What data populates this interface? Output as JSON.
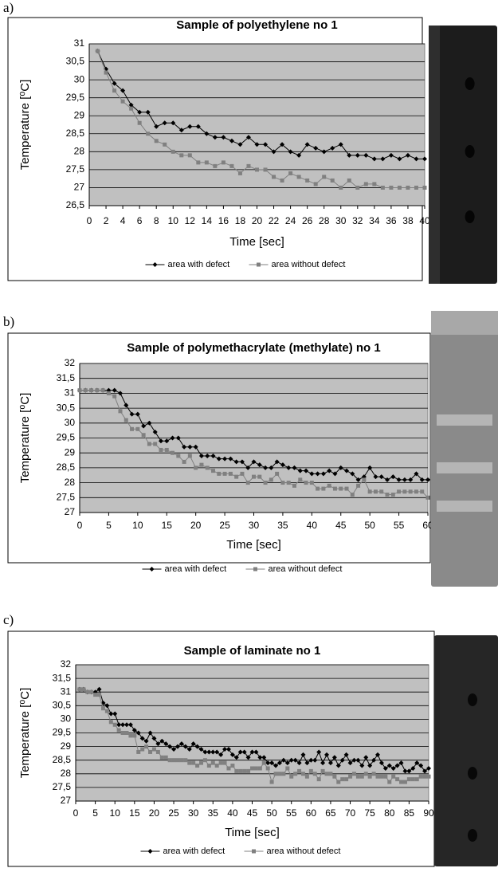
{
  "chart_data": [
    {
      "type": "line",
      "panel": "a)",
      "title": "Sample of polyethylene no 1",
      "x_label": "Time [sec]",
      "y_label": "Temperature [⁰C]",
      "x": [
        1,
        2,
        3,
        4,
        5,
        6,
        7,
        8,
        9,
        10,
        11,
        12,
        13,
        14,
        15,
        16,
        17,
        18,
        19,
        20,
        21,
        22,
        23,
        24,
        25,
        26,
        27,
        28,
        29,
        30,
        31,
        32,
        33,
        34,
        35,
        36,
        37,
        38,
        39,
        40
      ],
      "series": [
        {
          "name": "area with defect",
          "color": "#000000",
          "marker": "diamond",
          "values": [
            30.8,
            30.3,
            29.9,
            29.7,
            29.3,
            29.1,
            29.1,
            28.7,
            28.8,
            28.8,
            28.6,
            28.7,
            28.7,
            28.5,
            28.4,
            28.4,
            28.3,
            28.2,
            28.4,
            28.2,
            28.2,
            28.0,
            28.2,
            28.0,
            27.9,
            28.2,
            28.1,
            28.0,
            28.1,
            28.2,
            27.9,
            27.9,
            27.9,
            27.8,
            27.8,
            27.9,
            27.8,
            27.9,
            27.8,
            27.8
          ]
        },
        {
          "name": "area without defect",
          "color": "#808080",
          "marker": "square",
          "values": [
            30.8,
            30.2,
            29.7,
            29.4,
            29.2,
            28.8,
            28.5,
            28.3,
            28.2,
            28.0,
            27.9,
            27.9,
            27.7,
            27.7,
            27.6,
            27.7,
            27.6,
            27.4,
            27.6,
            27.5,
            27.5,
            27.3,
            27.2,
            27.4,
            27.3,
            27.2,
            27.1,
            27.3,
            27.2,
            27.0,
            27.2,
            27.0,
            27.1,
            27.1,
            27.0,
            27.0,
            27.0,
            27.0,
            27.0,
            27.0
          ]
        }
      ],
      "xlim": [
        0,
        40
      ],
      "xticks": [
        0,
        2,
        4,
        6,
        8,
        10,
        12,
        14,
        16,
        18,
        20,
        22,
        24,
        26,
        28,
        30,
        32,
        34,
        36,
        38,
        40
      ],
      "ylim": [
        26.5,
        31
      ],
      "yticks": [
        {
          "value": 26.5,
          "label": "26,5"
        },
        27,
        {
          "value": 27.5,
          "label": "27,5"
        },
        28,
        {
          "value": 28.5,
          "label": "28,5"
        },
        29,
        {
          "value": 29.5,
          "label": "29,5"
        },
        30,
        {
          "value": 30.5,
          "label": "30,5"
        },
        31
      ],
      "grid": true,
      "plot_background": "#c0c0c0",
      "legend": "bottom"
    },
    {
      "type": "line",
      "panel": "b)",
      "title": "Sample of polymethacrylate (methylate) no 1",
      "x_label": "Time [sec]",
      "y_label": "Temperature [⁰C]",
      "x": [
        0,
        1,
        2,
        3,
        4,
        5,
        6,
        7,
        8,
        9,
        10,
        11,
        12,
        13,
        14,
        15,
        16,
        17,
        18,
        19,
        20,
        21,
        22,
        23,
        24,
        25,
        26,
        27,
        28,
        29,
        30,
        31,
        32,
        33,
        34,
        35,
        36,
        37,
        38,
        39,
        40,
        41,
        42,
        43,
        44,
        45,
        46,
        47,
        48,
        49,
        50,
        51,
        52,
        53,
        54,
        55,
        56,
        57,
        58,
        59,
        60
      ],
      "series": [
        {
          "name": "area with defect",
          "color": "#000000",
          "marker": "diamond",
          "values": [
            31.1,
            31.1,
            31.1,
            31.1,
            31.1,
            31.1,
            31.1,
            31.0,
            30.6,
            30.3,
            30.3,
            29.9,
            30.0,
            29.7,
            29.4,
            29.4,
            29.5,
            29.5,
            29.2,
            29.2,
            29.2,
            28.9,
            28.9,
            28.9,
            28.8,
            28.8,
            28.8,
            28.7,
            28.7,
            28.5,
            28.7,
            28.6,
            28.5,
            28.5,
            28.7,
            28.6,
            28.5,
            28.5,
            28.4,
            28.4,
            28.3,
            28.3,
            28.3,
            28.4,
            28.3,
            28.5,
            28.4,
            28.3,
            28.1,
            28.2,
            28.5,
            28.2,
            28.2,
            28.1,
            28.2,
            28.1,
            28.1,
            28.1,
            28.3,
            28.1,
            28.1
          ]
        },
        {
          "name": "area without defect",
          "color": "#808080",
          "marker": "square",
          "values": [
            31.1,
            31.1,
            31.1,
            31.1,
            31.1,
            31.0,
            30.9,
            30.4,
            30.1,
            29.8,
            29.8,
            29.6,
            29.3,
            29.3,
            29.1,
            29.1,
            29.0,
            28.9,
            28.7,
            28.9,
            28.5,
            28.6,
            28.5,
            28.4,
            28.3,
            28.3,
            28.3,
            28.2,
            28.3,
            28.0,
            28.2,
            28.2,
            28.0,
            28.1,
            28.3,
            28.0,
            28.0,
            27.9,
            28.1,
            28.0,
            28.0,
            27.8,
            27.8,
            27.9,
            27.8,
            27.8,
            27.8,
            27.6,
            27.9,
            28.1,
            27.7,
            27.7,
            27.7,
            27.6,
            27.6,
            27.7,
            27.7,
            27.7,
            27.7,
            27.7,
            27.5
          ]
        }
      ],
      "xlim": [
        0,
        60
      ],
      "xticks": [
        0,
        5,
        10,
        15,
        20,
        25,
        30,
        35,
        40,
        45,
        50,
        55,
        60
      ],
      "ylim": [
        27,
        32
      ],
      "yticks": [
        27,
        {
          "value": 27.5,
          "label": "27,5"
        },
        28,
        {
          "value": 28.5,
          "label": "28,5"
        },
        29,
        {
          "value": 29.5,
          "label": "29,5"
        },
        30,
        {
          "value": 30.5,
          "label": "30,5"
        },
        31,
        {
          "value": 31.5,
          "label": "31,5"
        },
        32
      ],
      "grid": true,
      "plot_background": "#c0c0c0",
      "legend": "bottom"
    },
    {
      "type": "line",
      "panel": "c)",
      "title": "Sample of laminate no 1",
      "x_label": "Time [sec]",
      "y_label": "Temperature [⁰C]",
      "x": [
        1,
        2,
        3,
        4,
        5,
        6,
        7,
        8,
        9,
        10,
        11,
        12,
        13,
        14,
        15,
        16,
        17,
        18,
        19,
        20,
        21,
        22,
        23,
        24,
        25,
        26,
        27,
        28,
        29,
        30,
        31,
        32,
        33,
        34,
        35,
        36,
        37,
        38,
        39,
        40,
        41,
        42,
        43,
        44,
        45,
        46,
        47,
        48,
        49,
        50,
        51,
        52,
        53,
        54,
        55,
        56,
        57,
        58,
        59,
        60,
        61,
        62,
        63,
        64,
        65,
        66,
        67,
        68,
        69,
        70,
        71,
        72,
        73,
        74,
        75,
        76,
        77,
        78,
        79,
        80,
        81,
        82,
        83,
        84,
        85,
        86,
        87,
        88,
        89,
        90
      ],
      "series": [
        {
          "name": "area with defect",
          "color": "#000000",
          "marker": "diamond",
          "values": [
            31.1,
            31.1,
            31.0,
            31.0,
            31.0,
            31.1,
            30.6,
            30.5,
            30.2,
            30.2,
            29.8,
            29.8,
            29.8,
            29.8,
            29.6,
            29.5,
            29.3,
            29.2,
            29.5,
            29.3,
            29.1,
            29.2,
            29.1,
            29.0,
            28.9,
            29.0,
            29.1,
            29.0,
            28.9,
            29.1,
            29.0,
            28.9,
            28.8,
            28.8,
            28.8,
            28.8,
            28.7,
            28.9,
            28.9,
            28.7,
            28.6,
            28.8,
            28.8,
            28.6,
            28.8,
            28.8,
            28.6,
            28.6,
            28.4,
            28.4,
            28.3,
            28.4,
            28.5,
            28.4,
            28.5,
            28.5,
            28.4,
            28.7,
            28.4,
            28.5,
            28.5,
            28.8,
            28.4,
            28.7,
            28.4,
            28.6,
            28.3,
            28.5,
            28.7,
            28.4,
            28.5,
            28.5,
            28.3,
            28.6,
            28.3,
            28.5,
            28.7,
            28.4,
            28.2,
            28.3,
            28.2,
            28.3,
            28.4,
            28.1,
            28.1,
            28.2,
            28.4,
            28.3,
            28.1,
            28.2
          ]
        },
        {
          "name": "area without defect",
          "color": "#808080",
          "marker": "square",
          "values": [
            31.1,
            31.1,
            31.0,
            31.0,
            30.9,
            30.9,
            30.4,
            30.3,
            29.9,
            29.8,
            29.6,
            29.5,
            29.5,
            29.4,
            29.4,
            28.8,
            28.9,
            29.0,
            28.8,
            28.9,
            28.8,
            28.6,
            28.6,
            28.5,
            28.5,
            28.5,
            28.5,
            28.5,
            28.4,
            28.4,
            28.3,
            28.4,
            28.5,
            28.3,
            28.4,
            28.3,
            28.4,
            28.4,
            28.2,
            28.3,
            28.1,
            28.1,
            28.1,
            28.1,
            28.2,
            28.2,
            28.2,
            28.4,
            28.2,
            27.7,
            28.0,
            28.0,
            28.0,
            28.2,
            27.9,
            28.0,
            28.1,
            28.0,
            27.9,
            28.1,
            28.0,
            27.8,
            28.1,
            28.0,
            28.0,
            27.9,
            27.7,
            27.8,
            27.8,
            27.9,
            28.0,
            27.9,
            27.9,
            28.0,
            27.9,
            28.0,
            27.9,
            27.9,
            27.9,
            27.7,
            27.9,
            27.8,
            27.7,
            27.7,
            27.8,
            27.8,
            27.8,
            27.9,
            27.9,
            27.9
          ]
        }
      ],
      "xlim": [
        0,
        90
      ],
      "xticks": [
        0,
        5,
        10,
        15,
        20,
        25,
        30,
        35,
        40,
        45,
        50,
        55,
        60,
        65,
        70,
        75,
        80,
        85,
        90
      ],
      "ylim": [
        27,
        32
      ],
      "yticks": [
        27,
        {
          "value": 27.5,
          "label": "27,5"
        },
        28,
        {
          "value": 28.5,
          "label": "28,5"
        },
        29,
        {
          "value": 29.5,
          "label": "29,5"
        },
        30,
        {
          "value": 30.5,
          "label": "30,5"
        },
        31,
        {
          "value": 31.5,
          "label": "31,5"
        },
        32
      ],
      "grid": true,
      "plot_background": "#c0c0c0",
      "legend": "bottom"
    }
  ]
}
